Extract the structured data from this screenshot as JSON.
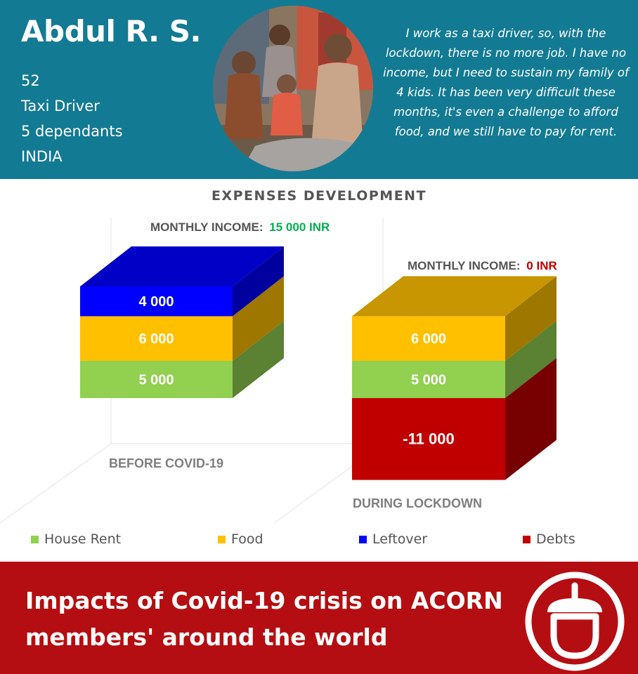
{
  "profile": {
    "name": "Abdul R. S.",
    "age": "52",
    "occupation": "Taxi Driver",
    "dependants": "5 dependants",
    "country": "INDIA",
    "quote": "I work as a taxi driver, so, with the lockdown, there is no more job. I have no income, but I need to sustain my family of 4 kids. It has been very difficult these months, it's even a challenge to  afford food, and we still have to pay for rent."
  },
  "chart_data": {
    "type": "bar",
    "title": "EXPENSES DEVELOPMENT",
    "stacked": true,
    "three_d": true,
    "categories": [
      "BEFORE COVID-19",
      "DURING LOCKDOWN"
    ],
    "income_label": "MONTHLY INCOME:",
    "incomes": [
      "15 000 INR",
      "0 INR"
    ],
    "series": [
      {
        "name": "House Rent",
        "values": [
          5000,
          5000
        ],
        "labels": [
          "5 000",
          "5 000"
        ],
        "color": "#92d050"
      },
      {
        "name": "Food",
        "values": [
          6000,
          6000
        ],
        "labels": [
          "6 000",
          "6 000"
        ],
        "color": "#ffc000"
      },
      {
        "name": "Leftover",
        "values": [
          4000,
          0
        ],
        "labels": [
          "4 000",
          ""
        ],
        "color": "#0000ff"
      },
      {
        "name": "Debts",
        "values": [
          0,
          -11000
        ],
        "labels": [
          "",
          "-11 000"
        ],
        "color": "#c00000"
      }
    ],
    "legend_position": "bottom",
    "colors": {
      "income_positive": "#00b050",
      "income_zero": "#c00000"
    }
  },
  "footer": {
    "title": "Impacts of Covid-19 crisis on ACORN members' around the world"
  }
}
